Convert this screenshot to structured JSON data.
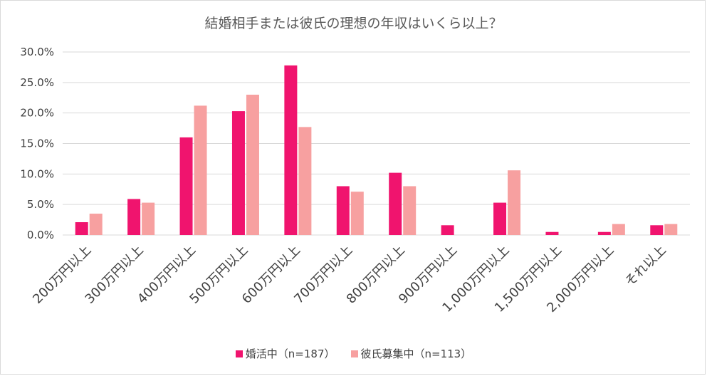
{
  "chart_data": {
    "type": "bar",
    "title": "結婚相手または彼氏の理想の年収はいくら以上？",
    "categories": [
      "200万円以上",
      "300万円以上",
      "400万円以上",
      "500万円以上",
      "600万円以上",
      "700万円以上",
      "800万円以上",
      "900万円以上",
      "1,000万円以上",
      "1,500万円以上",
      "2,000万円以上",
      "それ以上"
    ],
    "series": [
      {
        "name": "婚活中（n=187）",
        "color": "#f0146e",
        "values": [
          2.1,
          5.9,
          16.0,
          20.3,
          27.8,
          8.0,
          10.2,
          1.6,
          5.3,
          0.5,
          0.5,
          1.6
        ]
      },
      {
        "name": "彼氏募集中（n=113）",
        "color": "#f7a0a0",
        "values": [
          3.5,
          5.3,
          21.2,
          23.0,
          17.7,
          7.1,
          8.0,
          0.0,
          10.6,
          0.0,
          1.8,
          1.8
        ]
      }
    ],
    "yticks": [
      "0.0%",
      "5.0%",
      "10.0%",
      "15.0%",
      "20.0%",
      "25.0%",
      "30.0%"
    ],
    "ylim": [
      0,
      30
    ],
    "grid": true,
    "legend_position": "bottom"
  }
}
